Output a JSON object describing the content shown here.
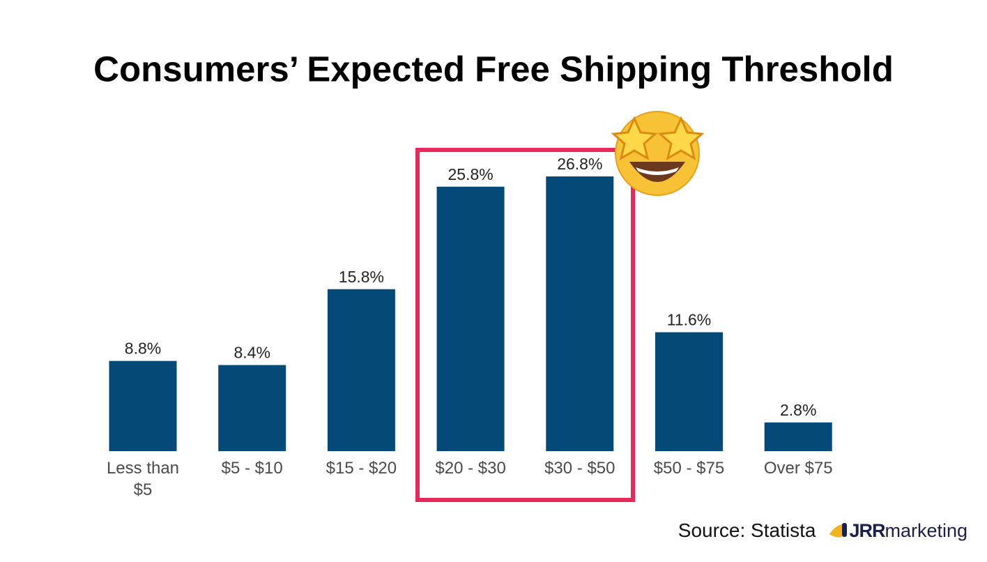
{
  "chart_data": {
    "type": "bar",
    "title": "Consumers’  Expected Free Shipping Threshold",
    "categories": [
      "Less than $5",
      "$5 - $10",
      "$15 - $20",
      "$20 - $30",
      "$30 - $50",
      "$50 - $75",
      "Over $75"
    ],
    "values": [
      8.8,
      8.4,
      15.8,
      25.8,
      26.8,
      11.6,
      2.8
    ],
    "value_labels": [
      "8.8%",
      "8.4%",
      "15.8%",
      "25.8%",
      "26.8%",
      "11.6%",
      "2.8%"
    ],
    "color": "#034a78",
    "source": "Source: Statista",
    "logo": {
      "brand": "JRR",
      "suffix": "marketing"
    }
  }
}
